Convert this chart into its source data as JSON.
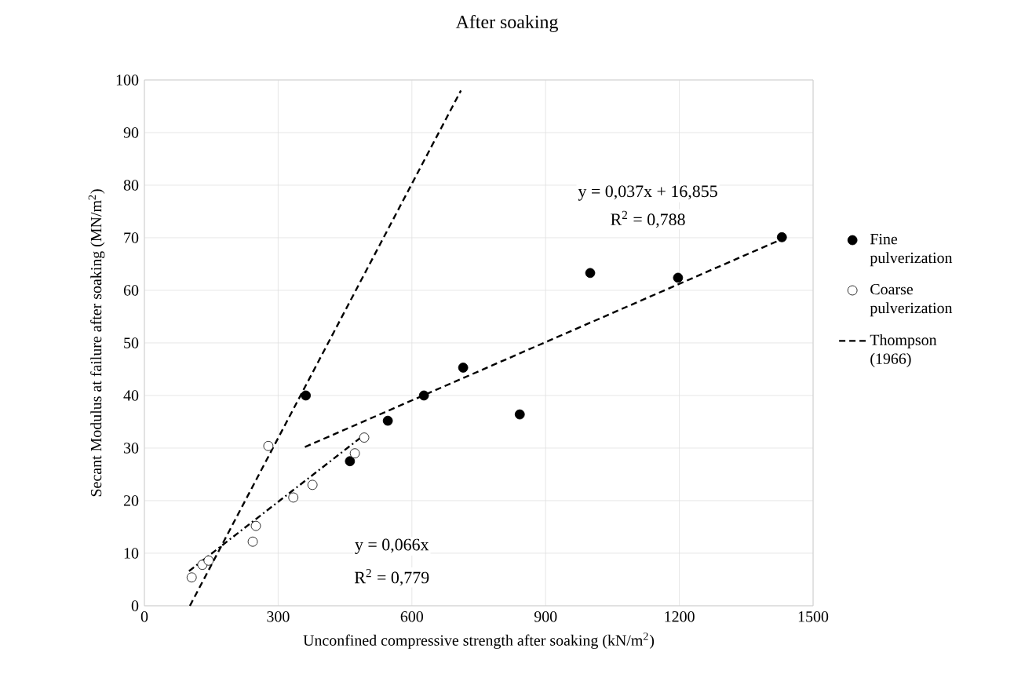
{
  "chart_data": {
    "type": "scatter",
    "title": "After soaking",
    "xlabel": "Unconfined compressive strength after soaking (kN/m$^{2}$)",
    "ylabel": "Secant Modulus at failure after soaking (MN/m$^{2}$)",
    "xlim": [
      0,
      1500
    ],
    "xticks": [
      0,
      300,
      600,
      900,
      1200,
      1500
    ],
    "ylim": [
      0,
      100
    ],
    "yticks": [
      0,
      10,
      20,
      30,
      40,
      50,
      60,
      70,
      80,
      90,
      100
    ],
    "grid": true,
    "legend": "right",
    "marker": "circle",
    "series": [
      {
        "name": "Fine pulverization",
        "color": "#000000",
        "x": [
          362,
          461,
          546,
          627,
          715,
          842,
          1000,
          1197,
          1430
        ],
        "values": [
          40,
          27.5,
          35.2,
          40,
          45.3,
          36.4,
          63.3,
          62.4,
          70.1
        ]
      },
      {
        "name": "Coarse pulverization",
        "color": "#ffffff",
        "x": [
          106,
          130,
          144,
          243,
          250,
          278,
          334,
          377,
          472,
          493
        ],
        "values": [
          5.4,
          7.8,
          8.6,
          12.2,
          15.2,
          30.4,
          20.6,
          23,
          29,
          32
        ]
      },
      {
        "name": "Thompson (1966)",
        "type": "line",
        "color": "#000000",
        "line_style": "dashed",
        "marker": "none",
        "x": [
          102,
          710
        ],
        "values": [
          0,
          98
        ]
      },
      {
        "type": "line",
        "color": "#000000",
        "line_style": "dashed",
        "marker": "none",
        "x": [
          360,
          1440
        ],
        "values": [
          30.2,
          70.1
        ]
      },
      {
        "type": "line",
        "color": "#000000",
        "line_style": "dashdot",
        "marker": "none",
        "x": [
          100,
          490
        ],
        "values": [
          6.6,
          32.3
        ]
      }
    ],
    "annotations": [
      "y = 0,037x + 16,855",
      "R$^{2}$ = 0,788",
      "y = 0,066x",
      "R$^{2}$ = 0,779"
    ]
  }
}
